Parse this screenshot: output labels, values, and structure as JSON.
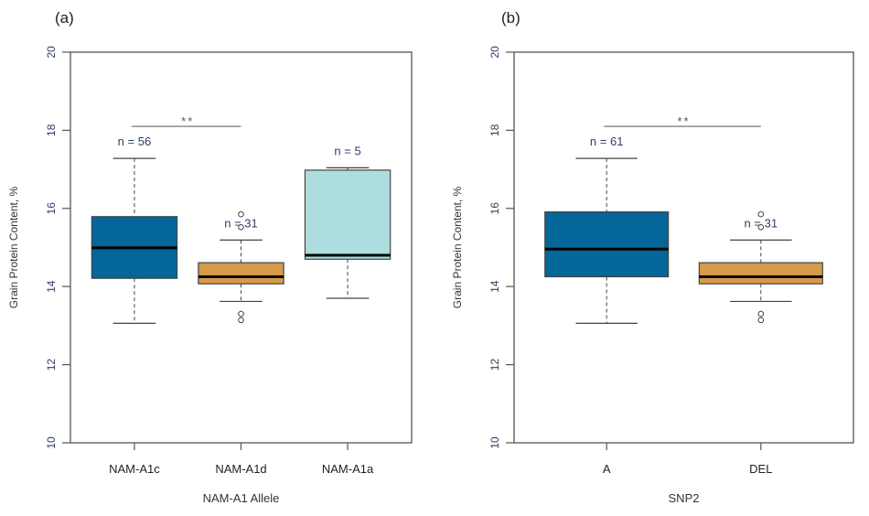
{
  "chart_data": [
    {
      "type": "box",
      "panel_label": "(a)",
      "xlabel": "NAM-A1 Allele",
      "ylabel": "Grain Protein Content, %",
      "ylim": [
        10,
        20
      ],
      "yticks": [
        10,
        12,
        14,
        16,
        18,
        20
      ],
      "grid": false,
      "groups": [
        {
          "name": "NAM-A1c",
          "n_label": "n = 56",
          "color": "#046699",
          "whisker_low": 13.06,
          "q1": 14.21,
          "median": 14.99,
          "q3": 15.79,
          "whisker_high": 17.28,
          "outliers": []
        },
        {
          "name": "NAM-A1d",
          "n_label": "n = 31",
          "color": "#D59A4A",
          "whisker_low": 13.62,
          "q1": 14.07,
          "median": 14.25,
          "q3": 14.61,
          "whisker_high": 15.19,
          "outliers": [
            15.85,
            15.52,
            13.3,
            13.14
          ]
        },
        {
          "name": "NAM-A1a",
          "n_label": "n = 5",
          "color": "#ADDDDE",
          "whisker_low": 13.7,
          "q1": 14.7,
          "median": 14.8,
          "q3": 16.98,
          "whisker_high": 17.04,
          "outliers": []
        }
      ],
      "significance": {
        "from": 0,
        "to": 1,
        "y": 18.1,
        "label": "**"
      }
    },
    {
      "type": "box",
      "panel_label": "(b)",
      "xlabel": "SNP2",
      "ylabel": "Grain Protein Content, %",
      "ylim": [
        10,
        20
      ],
      "yticks": [
        10,
        12,
        14,
        16,
        18,
        20
      ],
      "grid": false,
      "groups": [
        {
          "name": "A",
          "n_label": "n = 61",
          "color": "#046699",
          "whisker_low": 13.06,
          "q1": 14.25,
          "median": 14.96,
          "q3": 15.91,
          "whisker_high": 17.28,
          "outliers": []
        },
        {
          "name": "DEL",
          "n_label": "n = 31",
          "color": "#D59A4A",
          "whisker_low": 13.62,
          "q1": 14.07,
          "median": 14.25,
          "q3": 14.61,
          "whisker_high": 15.19,
          "outliers": [
            15.85,
            15.52,
            13.3,
            13.14
          ]
        }
      ],
      "significance": {
        "from": 0,
        "to": 1,
        "y": 18.1,
        "label": "**"
      }
    }
  ]
}
